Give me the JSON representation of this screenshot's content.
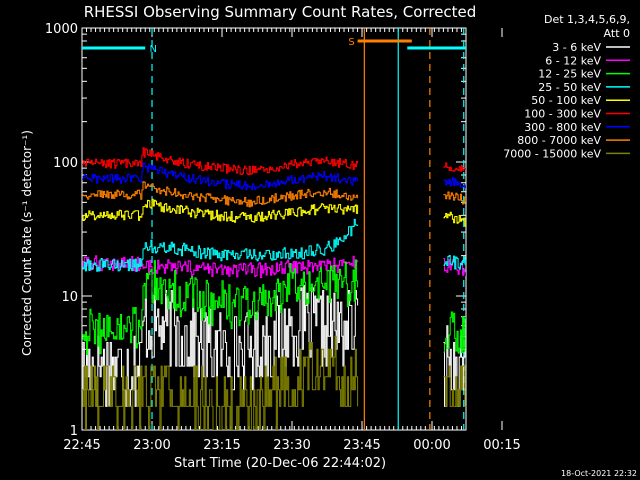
{
  "chart_data": {
    "type": "line",
    "title": "RHESSI Observing Summary Count Rates, Corrected",
    "xlabel": "Start Time (20-Dec-06 22:44:02)",
    "ylabel": "Corrected Count Rate (s⁻¹ detector⁻¹)",
    "y_scale": "log",
    "ylim": [
      1,
      1000
    ],
    "xlim_minutes": [
      -1,
      84
    ],
    "x_tick_labels": [
      "22:45",
      "23:00",
      "23:15",
      "23:30",
      "23:45",
      "00:00",
      "00:15"
    ],
    "x_tick_minutes": [
      1,
      16,
      31,
      46,
      61,
      76,
      91
    ],
    "y_tick_labels": [
      "1",
      "10",
      "100",
      "1000"
    ],
    "y_tick_values": [
      1,
      10,
      100,
      1000
    ],
    "legend": {
      "header": [
        "Det 1,3,4,5,6,9,",
        "Att 0"
      ],
      "placement": "right"
    },
    "footer_timestamp": "18-Oct-2021 22:32",
    "flags": [
      {
        "label": "N",
        "color": "#00ffff",
        "start": -1,
        "end": 13
      },
      {
        "label": "S",
        "color": "#ff8000",
        "start": 60,
        "end": 72
      },
      {
        "label": "",
        "color": "#00ffff",
        "start": 71,
        "end": 84
      }
    ],
    "vlines": [
      {
        "minute": 14.5,
        "color": "#00ffff",
        "style": "dashed"
      },
      {
        "minute": 61.5,
        "color": "#ff8000",
        "style": "solid"
      },
      {
        "minute": 69,
        "color": "#00ffff",
        "style": "solid"
      },
      {
        "minute": 76,
        "color": "#ff8000",
        "style": "dashed"
      },
      {
        "minute": 83.5,
        "color": "#00ffff",
        "style": "dashed"
      }
    ],
    "data_gaps": [
      [
        60,
        79
      ]
    ],
    "series": [
      {
        "name": "3 - 6 keV",
        "color": "#ffffff",
        "x": [
          -1,
          12,
          12.5,
          20,
          25,
          31,
          38,
          43,
          48,
          55,
          60,
          79.5,
          84
        ],
        "y": [
          3,
          3,
          6.2,
          5.5,
          4.4,
          3.9,
          4,
          5.4,
          6,
          5.5,
          6,
          3,
          3
        ]
      },
      {
        "name": "6 - 12 keV",
        "color": "#ff00ff",
        "x": [
          -1,
          12,
          12.5,
          20,
          30,
          38,
          43,
          48,
          55,
          60,
          79.5,
          84
        ],
        "y": [
          17.5,
          17.5,
          16.5,
          16.2,
          15.5,
          15.5,
          16,
          16.6,
          17,
          17.5,
          17,
          16
        ]
      },
      {
        "name": "12 - 25 keV",
        "color": "#00ff00",
        "x": [
          -1,
          12,
          12.5,
          18,
          24,
          30,
          36,
          40,
          44,
          48,
          55,
          60,
          79.5,
          84
        ],
        "y": [
          5.5,
          5.5,
          14,
          11,
          9.5,
          8.6,
          8.4,
          8.8,
          11.5,
          13,
          12,
          13,
          5.5,
          5
        ]
      },
      {
        "name": "25 - 50 keV",
        "color": "#00ffff",
        "x": [
          -1,
          12,
          12.5,
          20,
          28,
          36,
          44,
          52,
          56,
          60,
          79.5,
          84
        ],
        "y": [
          17,
          17,
          24,
          22.5,
          20.5,
          20,
          20.5,
          22,
          25,
          36,
          18,
          17.5
        ]
      },
      {
        "name": "50 - 100 keV",
        "color": "#ffff00",
        "x": [
          -1,
          12,
          12.5,
          20,
          28,
          36,
          44,
          52,
          60,
          79.5,
          84
        ],
        "y": [
          40,
          40,
          50,
          44,
          40,
          38,
          41,
          45,
          44,
          40,
          36
        ]
      },
      {
        "name": "100 - 300 keV",
        "color": "#ff0000",
        "x": [
          -1,
          12,
          12.5,
          20,
          28,
          36,
          44,
          52,
          60,
          79.5,
          84
        ],
        "y": [
          97,
          97,
          118,
          100,
          91,
          86,
          94,
          103,
          93,
          93,
          88
        ]
      },
      {
        "name": "300 - 800 keV",
        "color": "#0000ff",
        "x": [
          -1,
          12,
          12.5,
          20,
          28,
          36,
          44,
          52,
          60,
          79.5,
          84
        ],
        "y": [
          75,
          75,
          92,
          79,
          70,
          66,
          72,
          79,
          71,
          73,
          68
        ]
      },
      {
        "name": "800 - 7000 keV",
        "color": "#ff8000",
        "x": [
          -1,
          12,
          12.5,
          20,
          28,
          36,
          44,
          52,
          60,
          79.5,
          84
        ],
        "y": [
          57,
          57,
          68,
          58,
          53,
          50,
          55,
          60,
          55,
          56,
          52
        ]
      },
      {
        "name": "7000 - 15000 keV",
        "color": "#808000",
        "x": [
          -1,
          12,
          12.5,
          20,
          28,
          38,
          44,
          52,
          60,
          79.5,
          84
        ],
        "y": [
          2,
          2,
          2,
          2,
          1.5,
          1.5,
          2.5,
          2.8,
          2.5,
          2,
          2
        ]
      }
    ]
  }
}
